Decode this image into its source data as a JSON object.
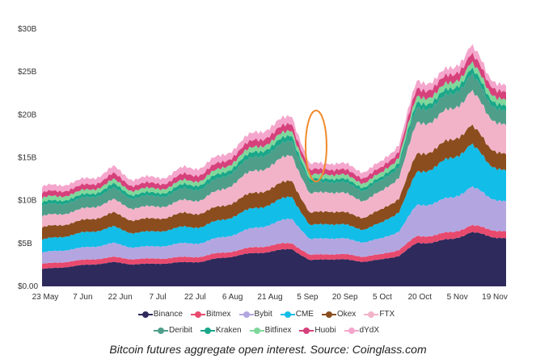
{
  "caption": "Bitcoin futures aggregate open interest. Source: Coinglass.com",
  "chart_data": {
    "type": "area",
    "stacked": true,
    "title": "",
    "xlabel": "",
    "ylabel": "",
    "ylim": [
      0,
      30
    ],
    "y_ticks": [
      {
        "value": 0,
        "label": "$0.00"
      },
      {
        "value": 5,
        "label": "$5B"
      },
      {
        "value": 10,
        "label": "$10B"
      },
      {
        "value": 15,
        "label": "$15B"
      },
      {
        "value": 20,
        "label": "$20B"
      },
      {
        "value": 25,
        "label": "$25B"
      },
      {
        "value": 30,
        "label": "$30B"
      }
    ],
    "x_ticks": [
      "23 May",
      "7 Jun",
      "22 Jun",
      "7 Jul",
      "22 Jul",
      "6 Aug",
      "21 Aug",
      "5 Sep",
      "20 Sep",
      "5 Oct",
      "20 Oct",
      "5 Nov",
      "19 Nov"
    ],
    "x": [
      "23 May",
      "30 May",
      "7 Jun",
      "14 Jun",
      "22 Jun",
      "29 Jun",
      "7 Jul",
      "14 Jul",
      "22 Jul",
      "29 Jul",
      "6 Aug",
      "13 Aug",
      "21 Aug",
      "28 Aug",
      "4 Sep",
      "6 Sep",
      "13 Sep",
      "20 Sep",
      "27 Sep",
      "5 Oct",
      "12 Oct",
      "20 Oct",
      "27 Oct",
      "5 Nov",
      "10 Nov",
      "14 Nov",
      "19 Nov"
    ],
    "legend_position": "bottom",
    "series": [
      {
        "name": "Binance",
        "color": "#2e2a5c",
        "values": [
          2.0,
          2.2,
          2.4,
          2.6,
          2.8,
          2.6,
          2.6,
          2.7,
          2.8,
          2.9,
          3.3,
          3.6,
          3.9,
          4.1,
          4.4,
          3.0,
          3.2,
          3.1,
          2.9,
          3.1,
          3.6,
          5.0,
          5.2,
          5.5,
          6.3,
          5.9,
          5.6
        ]
      },
      {
        "name": "Bitmex",
        "color": "#e84a6e",
        "values": [
          0.6,
          0.6,
          0.6,
          0.6,
          0.6,
          0.6,
          0.6,
          0.6,
          0.6,
          0.6,
          0.6,
          0.6,
          0.7,
          0.7,
          0.7,
          0.6,
          0.6,
          0.6,
          0.6,
          0.6,
          0.7,
          0.8,
          0.8,
          0.8,
          0.8,
          0.8,
          0.8
        ]
      },
      {
        "name": "Bybit",
        "color": "#b3a6e0",
        "values": [
          1.3,
          1.4,
          1.4,
          1.5,
          1.6,
          1.4,
          1.4,
          1.5,
          1.6,
          1.6,
          1.8,
          2.0,
          2.3,
          2.5,
          2.9,
          1.8,
          1.9,
          1.8,
          1.7,
          1.8,
          2.2,
          3.6,
          3.8,
          4.0,
          4.5,
          3.8,
          3.5
        ]
      },
      {
        "name": "CME",
        "color": "#12bde8",
        "values": [
          1.5,
          1.6,
          1.7,
          1.8,
          1.9,
          1.7,
          1.7,
          1.8,
          1.9,
          1.9,
          2.0,
          2.2,
          2.3,
          2.4,
          2.6,
          1.6,
          1.7,
          1.6,
          1.5,
          1.8,
          2.3,
          3.8,
          4.2,
          4.6,
          5.0,
          3.9,
          3.6
        ]
      },
      {
        "name": "Okex",
        "color": "#8b4d1e",
        "values": [
          1.4,
          1.4,
          1.4,
          1.5,
          1.6,
          1.5,
          1.5,
          1.5,
          1.6,
          1.6,
          1.6,
          1.7,
          1.8,
          1.8,
          1.9,
          1.4,
          1.5,
          1.4,
          1.4,
          1.5,
          1.6,
          2.1,
          2.1,
          2.1,
          2.2,
          2.0,
          1.9
        ]
      },
      {
        "name": "FTX",
        "color": "#f2b3c8",
        "values": [
          1.3,
          1.3,
          1.3,
          1.4,
          1.5,
          1.4,
          1.4,
          1.4,
          1.5,
          1.6,
          1.9,
          2.3,
          2.6,
          2.7,
          3.0,
          2.2,
          2.3,
          2.2,
          2.0,
          2.1,
          2.5,
          3.6,
          3.5,
          3.6,
          4.0,
          3.6,
          3.4
        ]
      },
      {
        "name": "Deribit",
        "color": "#4f9e8a",
        "values": [
          1.2,
          1.2,
          1.2,
          1.2,
          1.3,
          1.2,
          1.2,
          1.2,
          1.3,
          1.3,
          1.4,
          1.5,
          1.6,
          1.6,
          1.7,
          1.2,
          1.2,
          1.2,
          1.2,
          1.2,
          1.3,
          1.7,
          1.7,
          1.7,
          1.9,
          1.7,
          1.6
        ]
      },
      {
        "name": "Kraken",
        "color": "#1aa78a",
        "values": [
          0.4,
          0.4,
          0.4,
          0.4,
          0.5,
          0.4,
          0.4,
          0.4,
          0.5,
          0.5,
          0.5,
          0.5,
          0.6,
          0.6,
          0.6,
          0.4,
          0.4,
          0.4,
          0.4,
          0.4,
          0.5,
          0.6,
          0.6,
          0.6,
          0.7,
          0.6,
          0.6
        ]
      },
      {
        "name": "Bitfinex",
        "color": "#7fd89a",
        "values": [
          0.5,
          0.5,
          0.5,
          0.5,
          0.5,
          0.5,
          0.5,
          0.5,
          0.5,
          0.5,
          0.6,
          0.6,
          0.6,
          0.6,
          0.6,
          0.5,
          0.5,
          0.5,
          0.5,
          0.5,
          0.6,
          0.7,
          0.7,
          0.7,
          0.7,
          0.7,
          0.7
        ]
      },
      {
        "name": "Huobi",
        "color": "#d6417b",
        "values": [
          0.6,
          0.6,
          0.6,
          0.6,
          0.7,
          0.6,
          0.6,
          0.6,
          0.7,
          0.7,
          0.7,
          0.7,
          0.8,
          0.8,
          0.8,
          0.6,
          0.6,
          0.6,
          0.6,
          0.6,
          0.7,
          0.9,
          0.9,
          0.9,
          1.0,
          0.9,
          0.9
        ]
      },
      {
        "name": "dYdX",
        "color": "#f4a6cc",
        "values": [
          0.7,
          0.7,
          0.7,
          0.7,
          0.8,
          0.7,
          0.7,
          0.7,
          0.8,
          0.8,
          0.8,
          0.8,
          0.9,
          0.9,
          0.9,
          0.7,
          0.7,
          0.7,
          0.7,
          0.7,
          0.8,
          0.9,
          0.8,
          0.8,
          1.0,
          0.8,
          0.8
        ]
      }
    ],
    "highlight_color": "#f08a2c"
  }
}
